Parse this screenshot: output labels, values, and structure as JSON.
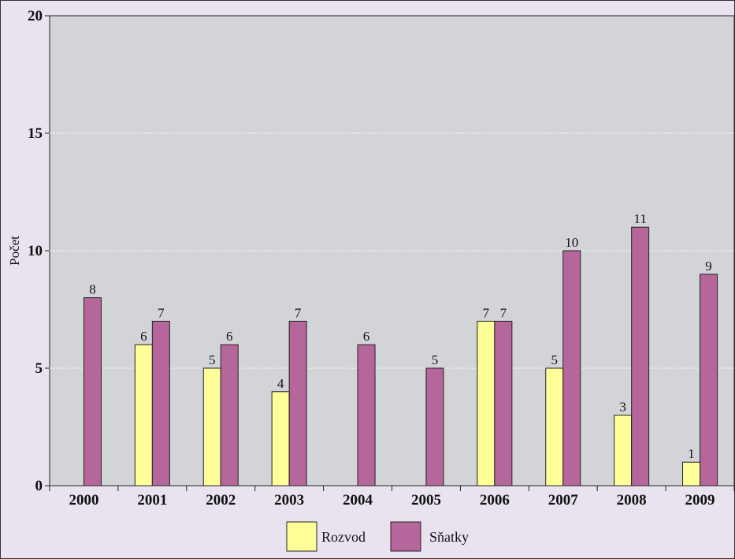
{
  "chart_data": {
    "type": "bar",
    "title": "",
    "xlabel": "",
    "ylabel": "Počet",
    "ylim": [
      0,
      20
    ],
    "yticks": [
      0,
      5,
      10,
      15,
      20
    ],
    "grid": true,
    "legend_position": "bottom-center",
    "categories": [
      "2000",
      "2001",
      "2002",
      "2003",
      "2004",
      "2005",
      "2006",
      "2007",
      "2008",
      "2009"
    ],
    "series": [
      {
        "name": "Rozvod",
        "color": "#ffff99",
        "values": [
          null,
          6,
          5,
          4,
          null,
          null,
          7,
          5,
          3,
          1
        ]
      },
      {
        "name": "Sňatky",
        "color": "#b5669a",
        "values": [
          8,
          7,
          6,
          7,
          6,
          5,
          7,
          10,
          11,
          9
        ]
      }
    ],
    "plot_background": "#d3d4d7",
    "page_background": "#e9e3ef"
  }
}
